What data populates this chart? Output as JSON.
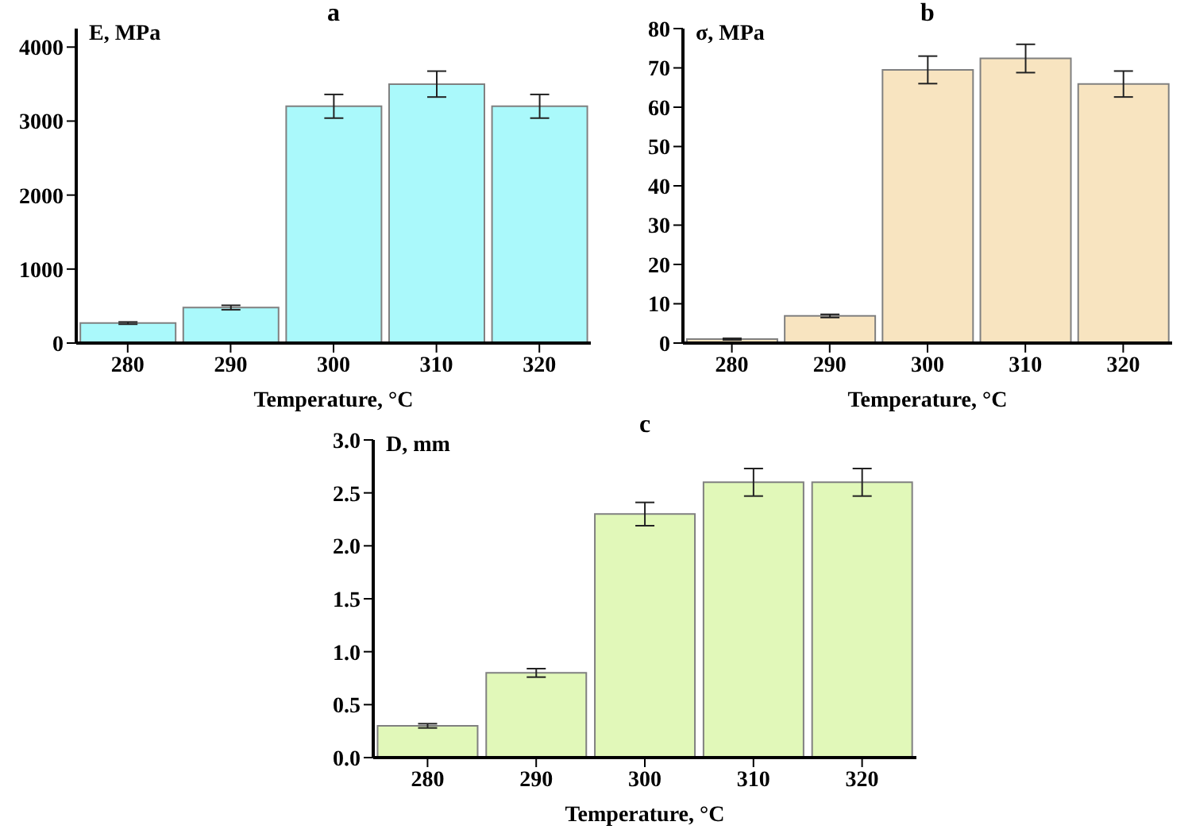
{
  "chart_data": [
    {
      "type": "bar",
      "title": "a",
      "ylabel": "E, MPa",
      "xlabel": "Temperature, °C",
      "categories": [
        "280",
        "290",
        "300",
        "310",
        "320"
      ],
      "values": [
        270,
        480,
        3200,
        3500,
        3200
      ],
      "errors": [
        15,
        30,
        160,
        175,
        160
      ],
      "color": "#aaf9fb",
      "ylim": [
        0,
        4250
      ],
      "yticks": [
        0,
        1000,
        2000,
        3000,
        4000
      ],
      "grid": false
    },
    {
      "type": "bar",
      "title": "b",
      "ylabel": "σ, MPa",
      "xlabel": "Temperature, °C",
      "categories": [
        "280",
        "290",
        "300",
        "310",
        "320"
      ],
      "values": [
        1.0,
        6.9,
        69.5,
        72.4,
        65.9
      ],
      "errors": [
        0.2,
        0.4,
        3.5,
        3.6,
        3.3
      ],
      "color": "#f8e4c0",
      "ylim": [
        0,
        80
      ],
      "yticks": [
        0,
        10,
        20,
        30,
        40,
        50,
        60,
        70,
        80
      ],
      "grid": false
    },
    {
      "type": "bar",
      "title": "c",
      "ylabel": "D, mm",
      "xlabel": "Temperature, °C",
      "categories": [
        "280",
        "290",
        "300",
        "310",
        "320"
      ],
      "values": [
        0.3,
        0.8,
        2.3,
        2.6,
        2.6
      ],
      "errors": [
        0.02,
        0.04,
        0.11,
        0.13,
        0.13
      ],
      "color": "#e1f8b9",
      "ylim": [
        0,
        3.0
      ],
      "yticks": [
        {
          "value": 0,
          "label": "0.0"
        },
        {
          "value": 0.5,
          "label": "0.5"
        },
        {
          "value": 1,
          "label": "1.0"
        },
        {
          "value": 1.5,
          "label": "1.5"
        },
        {
          "value": 2,
          "label": "2.0"
        },
        {
          "value": 2.5,
          "label": "2.5"
        },
        {
          "value": 3,
          "label": "3.0"
        }
      ],
      "grid": false
    }
  ]
}
